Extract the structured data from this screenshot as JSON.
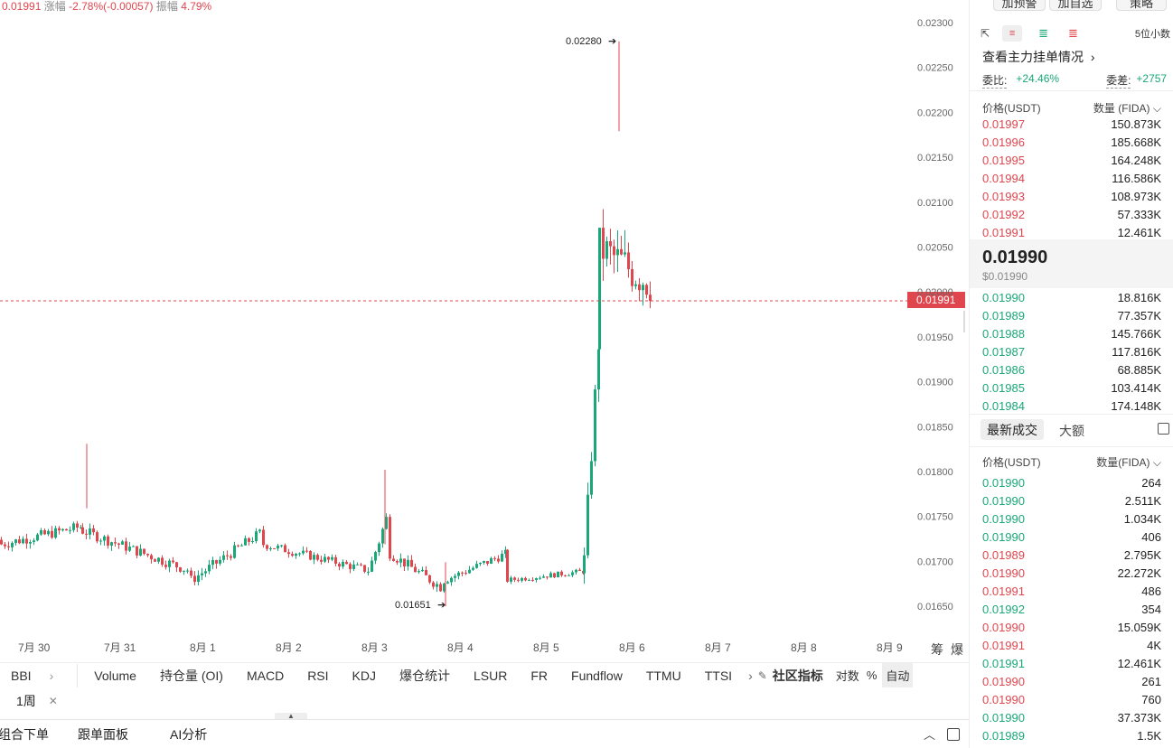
{
  "ticker": {
    "price": "0.01991",
    "change_label": "涨幅",
    "change_value": "-2.78%(-0.00057)",
    "amp_label": "振幅",
    "amp_value": "4.79%"
  },
  "chart": {
    "price_ticks": [
      "0.02300",
      "0.02250",
      "0.02200",
      "0.02150",
      "0.02100",
      "0.02050",
      "0.02000",
      "0.01950",
      "0.01900",
      "0.01850",
      "0.01800",
      "0.01750",
      "0.01700",
      "0.01650"
    ],
    "date_ticks": [
      "7月 30",
      "7月 31",
      "8月 1",
      "8月 2",
      "8月 3",
      "8月 4",
      "8月 5",
      "8月 6",
      "8月 7",
      "8月 8",
      "8月 9"
    ],
    "current_price_tag": "0.01991",
    "high_label": "0.02280",
    "low_label": "0.01651",
    "side_icons": [
      "筹",
      "爆"
    ],
    "colors": {
      "up": "#1aa77a",
      "down": "#e0464e"
    }
  },
  "indicator_bar": {
    "left": "BBI",
    "items": [
      "Volume",
      "持仓量 (OI)",
      "MACD",
      "RSI",
      "KDJ",
      "爆仓统计",
      "LSUR",
      "FR",
      "Fundflow",
      "TTMU",
      "TTSI"
    ],
    "community": "社区指标",
    "log": "对数",
    "pct": "%",
    "auto": "自动"
  },
  "period": {
    "label": "1周"
  },
  "bottom_bar": {
    "tabs": [
      "组合下单",
      "跟单面板",
      "AI分析"
    ]
  },
  "right_panel": {
    "top_buttons": [
      "加预警",
      "加自选",
      "策略"
    ],
    "precision": "5位小数",
    "main_orders_link": "查看主力挂单情况",
    "ratio_label": "委比:",
    "ratio_value": "+24.46%",
    "diff_label": "委差:",
    "diff_value": "+2757",
    "ob_header": {
      "price": "价格(USDT)",
      "qty": "数量 (FIDA)"
    },
    "asks": [
      {
        "price": "0.01997",
        "qty": "150.873K"
      },
      {
        "price": "0.01996",
        "qty": "185.668K"
      },
      {
        "price": "0.01995",
        "qty": "164.248K"
      },
      {
        "price": "0.01994",
        "qty": "116.586K"
      },
      {
        "price": "0.01993",
        "qty": "108.973K"
      },
      {
        "price": "0.01992",
        "qty": "57.333K"
      },
      {
        "price": "0.01991",
        "qty": "12.461K"
      }
    ],
    "last_price": "0.01990",
    "last_price_usd": "$0.01990",
    "bids": [
      {
        "price": "0.01990",
        "qty": "18.816K"
      },
      {
        "price": "0.01989",
        "qty": "77.357K"
      },
      {
        "price": "0.01988",
        "qty": "145.766K"
      },
      {
        "price": "0.01987",
        "qty": "117.816K"
      },
      {
        "price": "0.01986",
        "qty": "68.885K"
      },
      {
        "price": "0.01985",
        "qty": "103.414K"
      },
      {
        "price": "0.01984",
        "qty": "174.148K"
      }
    ],
    "trades_tabs": [
      "最新成交",
      "大额"
    ],
    "trades_header": {
      "price": "价格(USDT)",
      "qty": "数量(FIDA)"
    },
    "trades": [
      {
        "price": "0.01990",
        "qty": "264",
        "side": "buy"
      },
      {
        "price": "0.01990",
        "qty": "2.511K",
        "side": "buy"
      },
      {
        "price": "0.01990",
        "qty": "1.034K",
        "side": "buy"
      },
      {
        "price": "0.01990",
        "qty": "406",
        "side": "buy"
      },
      {
        "price": "0.01989",
        "qty": "2.795K",
        "side": "sell"
      },
      {
        "price": "0.01990",
        "qty": "22.272K",
        "side": "sell"
      },
      {
        "price": "0.01991",
        "qty": "486",
        "side": "sell"
      },
      {
        "price": "0.01992",
        "qty": "354",
        "side": "buy"
      },
      {
        "price": "0.01990",
        "qty": "15.059K",
        "side": "sell"
      },
      {
        "price": "0.01991",
        "qty": "4K",
        "side": "sell"
      },
      {
        "price": "0.01991",
        "qty": "12.461K",
        "side": "buy"
      },
      {
        "price": "0.01990",
        "qty": "261",
        "side": "sell"
      },
      {
        "price": "0.01990",
        "qty": "760",
        "side": "sell"
      },
      {
        "price": "0.01990",
        "qty": "37.373K",
        "side": "buy"
      },
      {
        "price": "0.01989",
        "qty": "1.5K",
        "side": "buy"
      }
    ]
  }
}
